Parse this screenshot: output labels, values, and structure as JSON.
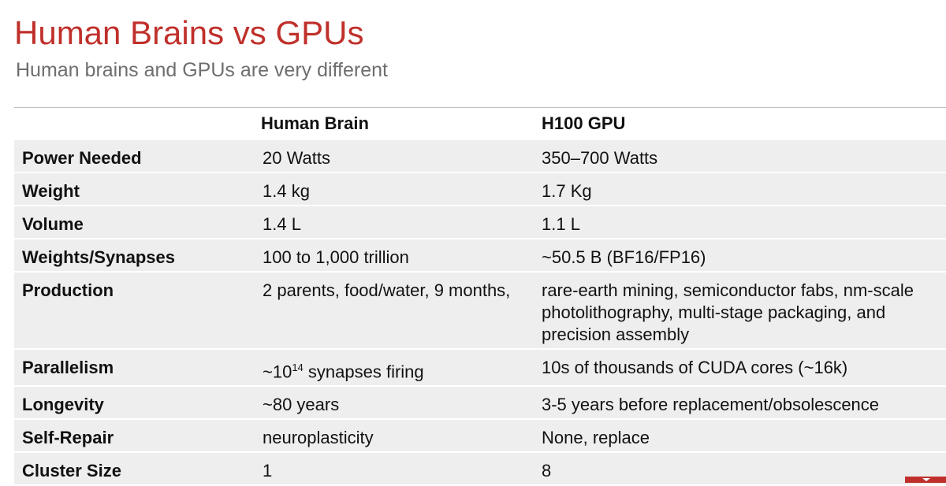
{
  "slide": {
    "title": "Human Brains vs GPUs",
    "subtitle": "Human brains and GPUs are very different"
  },
  "table": {
    "headers": [
      "",
      "Human Brain",
      "H100 GPU"
    ],
    "rows": [
      {
        "label": "Power Needed",
        "brain": "20 Watts",
        "gpu": "350–700 Watts"
      },
      {
        "label": "Weight",
        "brain": "1.4 kg",
        "gpu": "1.7 Kg"
      },
      {
        "label": "Volume",
        "brain": "1.4 L",
        "gpu": "1.1 L"
      },
      {
        "label": "Weights/Synapses",
        "brain": "100 to 1,000 trillion",
        "gpu": "~50.5 B (BF16/FP16)"
      },
      {
        "label": "Production",
        "brain": "2 parents, food/water, 9 months,",
        "gpu": "rare-earth mining, semiconductor fabs, nm-scale photolithography, multi-stage packaging, and precision assembly"
      },
      {
        "label": "Parallelism",
        "brain_prefix": "~10",
        "brain_exp": "14",
        "brain_suffix": " synapses firing",
        "gpu": "10s of thousands of CUDA cores (~16k)"
      },
      {
        "label": "Longevity",
        "brain": "~80 years",
        "gpu": "3-5 years before replacement/obsolescence"
      },
      {
        "label": "Self-Repair",
        "brain": "neuroplasticity",
        "gpu": "None, replace"
      },
      {
        "label": "Cluster Size",
        "brain": "1",
        "gpu": "8"
      }
    ]
  },
  "colors": {
    "accent": "#c0302b",
    "subtitle": "#6e6e6e",
    "row_background": "#eeeeee"
  }
}
